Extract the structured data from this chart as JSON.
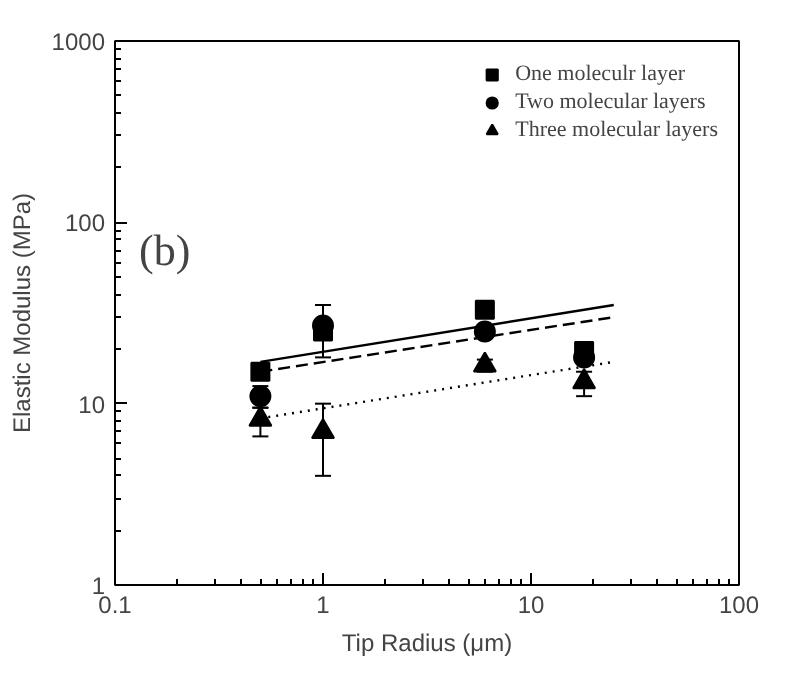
{
  "chart_data": {
    "type": "scatter",
    "xlabel": "Tip Radius (μm)",
    "ylabel": "Elastic Modulus (MPa)",
    "log": "xy",
    "annotations": [
      "(b)"
    ],
    "xlim": [
      0.1,
      100
    ],
    "ylim": [
      1,
      1000
    ],
    "xticks": [
      0.1,
      1,
      10,
      100
    ],
    "yticks": [
      1,
      10,
      100,
      1000
    ],
    "grid": false,
    "legend": "top right",
    "series": [
      {
        "name": "One moleculr layer",
        "marker": "square",
        "color": "#000000",
        "x": [
          0.5,
          1,
          6,
          18
        ],
        "values": [
          15,
          25,
          33,
          19.5
        ],
        "errors": [
          [
            14,
            16
          ],
          null,
          null,
          null
        ]
      },
      {
        "name": "Two molecular layers",
        "marker": "circle",
        "color": "#000000",
        "x": [
          0.5,
          1,
          6,
          18
        ],
        "values": [
          11,
          27,
          25,
          18
        ],
        "errors": [
          [
            9.5,
            12.5
          ],
          [
            18,
            35
          ],
          [
            23,
            27
          ],
          null
        ]
      },
      {
        "name": "Three molecular layers",
        "marker": "triangle",
        "color": "#000000",
        "x": [
          0.5,
          1,
          6,
          18
        ],
        "values": [
          8.2,
          7,
          16.3,
          13.2
        ],
        "errors": [
          [
            6.6,
            9.5
          ],
          [
            4,
            10
          ],
          [
            15,
            17.5
          ],
          [
            11,
            15
          ]
        ]
      },
      {
        "type": "line",
        "line_style": "solid",
        "color": "#000000",
        "x": [
          0.5,
          25
        ],
        "values": [
          17,
          35
        ]
      },
      {
        "type": "line",
        "line_style": "dashed",
        "color": "#000000",
        "x": [
          0.5,
          25
        ],
        "values": [
          15,
          30
        ]
      },
      {
        "type": "line",
        "line_style": "dotted",
        "color": "#000000",
        "x": [
          0.5,
          25
        ],
        "values": [
          8.3,
          17
        ]
      }
    ]
  }
}
